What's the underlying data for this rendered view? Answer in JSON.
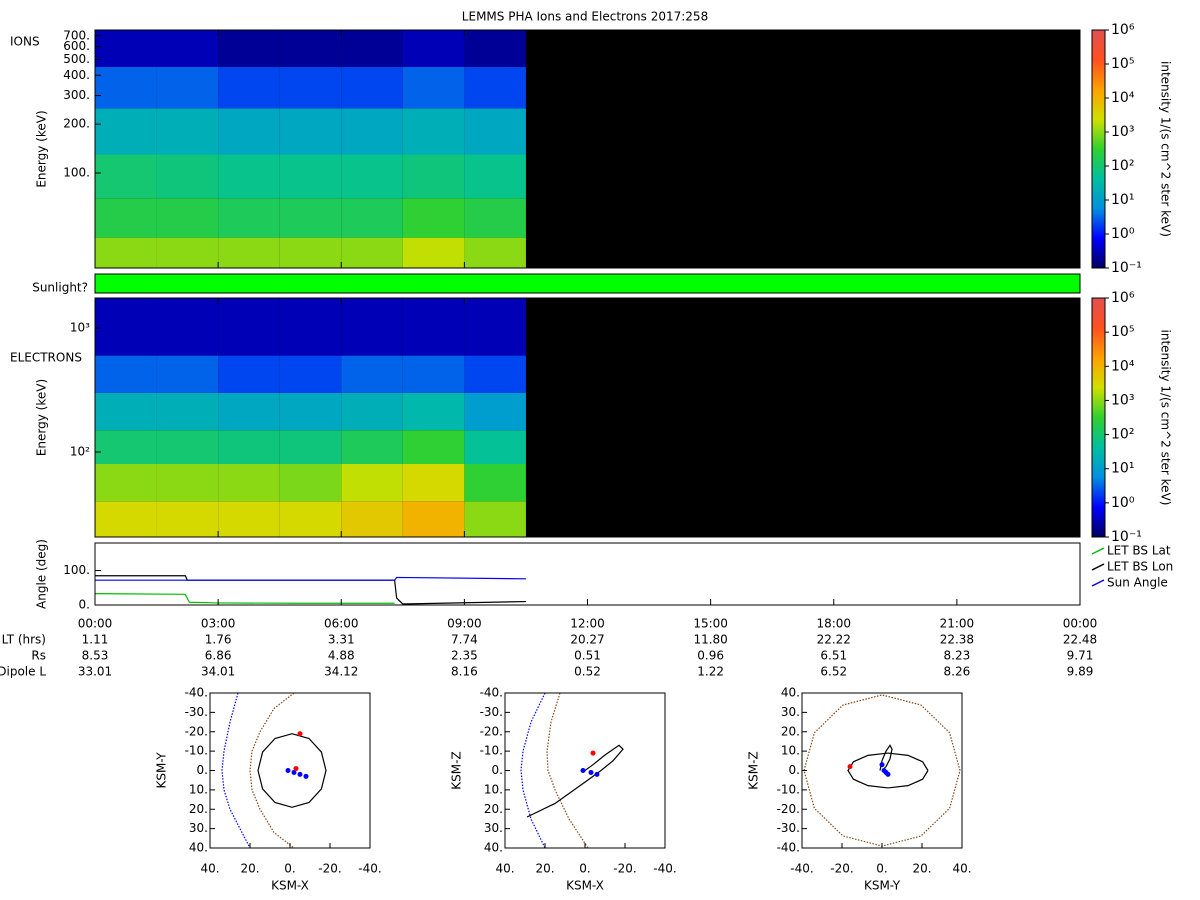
{
  "chart_data": [
    {
      "type": "heatmap",
      "title": "LEMMS PHA Ions and Electrons  2017:258",
      "label": "IONS",
      "ylabel": "Energy (keV)",
      "zlabel": "intensity 1/(s cm^2 ster keV)",
      "ylog": true,
      "ylim": [
        26,
        760
      ],
      "yticks": [
        {
          "value": 100,
          "label": "100."
        },
        {
          "value": 200,
          "label": "200."
        },
        {
          "value": 300,
          "label": "300."
        },
        {
          "value": 400,
          "label": "400."
        },
        {
          "value": 500,
          "label": "500."
        },
        {
          "value": 600,
          "label": "600."
        },
        {
          "value": 700,
          "label": "700."
        }
      ],
      "tbins": [
        0,
        1.5,
        3,
        4.5,
        6,
        7.5,
        9,
        10.5
      ],
      "ebins": [
        26,
        40,
        70,
        130,
        250,
        450,
        760
      ],
      "z": [
        [
          1000,
          1000,
          1000,
          1000,
          1000,
          2000,
          1000
        ],
        [
          200,
          200,
          150,
          150,
          150,
          300,
          200
        ],
        [
          100,
          80,
          60,
          60,
          60,
          80,
          60
        ],
        [
          20,
          20,
          15,
          15,
          15,
          20,
          15
        ],
        [
          3,
          3,
          2,
          2,
          2,
          3,
          2
        ],
        [
          0.3,
          0.3,
          0.2,
          0.2,
          0.2,
          0.3,
          0.2
        ]
      ],
      "zlim": [
        0.1,
        1000000
      ],
      "zticks": [
        {
          "value": 0.1,
          "label": "10⁻¹"
        },
        {
          "value": 1,
          "label": "10⁰"
        },
        {
          "value": 10,
          "label": "10¹"
        },
        {
          "value": 100,
          "label": "10²"
        },
        {
          "value": 1000,
          "label": "10³"
        },
        {
          "value": 10000,
          "label": "10⁴"
        },
        {
          "value": 100000,
          "label": "10⁵"
        },
        {
          "value": 1000000,
          "label": "10⁶"
        }
      ],
      "colormap": [
        "#000060",
        "#0000ff",
        "#0090e0",
        "#00c0a0",
        "#30d030",
        "#d0e000",
        "#ffa000",
        "#ff5020",
        "#e05050"
      ]
    },
    {
      "type": "band",
      "label": "Sunlight?",
      "intervals": [
        [
          0,
          24
        ]
      ],
      "color": "#00ff00"
    },
    {
      "type": "heatmap",
      "label": "ELECTRONS",
      "ylabel": "Energy (keV)",
      "zlabel": "intensity 1/(s cm^2 ster keV)",
      "ylog": true,
      "ylim": [
        20.6,
        1750
      ],
      "yticks": [
        {
          "value": 100,
          "label": "10²"
        },
        {
          "value": 1000,
          "label": "10³"
        }
      ],
      "tbins": [
        0,
        1.5,
        3,
        4.5,
        6,
        7.5,
        9,
        10.5
      ],
      "ebins": [
        20.6,
        40,
        80,
        150,
        300,
        600,
        1750
      ],
      "z": [
        [
          3000,
          3000,
          3000,
          3000,
          5000,
          10000,
          1000
        ],
        [
          1000,
          1000,
          1000,
          800,
          2000,
          3000,
          300
        ],
        [
          100,
          100,
          80,
          80,
          150,
          300,
          50
        ],
        [
          20,
          20,
          15,
          15,
          20,
          30,
          10
        ],
        [
          3,
          3,
          2,
          2,
          3,
          3,
          2
        ],
        [
          0.3,
          0.3,
          0.3,
          0.3,
          0.3,
          0.3,
          0.3
        ]
      ],
      "zlim": [
        0.1,
        1000000
      ],
      "zticks": [
        {
          "value": 0.1,
          "label": "10⁻¹"
        },
        {
          "value": 1,
          "label": "10⁰"
        },
        {
          "value": 10,
          "label": "10¹"
        },
        {
          "value": 100,
          "label": "10²"
        },
        {
          "value": 1000,
          "label": "10³"
        },
        {
          "value": 10000,
          "label": "10⁴"
        },
        {
          "value": 100000,
          "label": "10⁵"
        },
        {
          "value": 1000000,
          "label": "10⁶"
        }
      ],
      "colormap": [
        "#000060",
        "#0000ff",
        "#0090e0",
        "#00c0a0",
        "#30d030",
        "#d0e000",
        "#ffa000",
        "#ff5020",
        "#e05050"
      ]
    },
    {
      "type": "line",
      "ylabel": "Angle (deg)",
      "xlim": [
        0,
        24
      ],
      "ylim": [
        0,
        180
      ],
      "yticks": [
        {
          "value": 0,
          "label": "0."
        },
        {
          "value": 100,
          "label": "100."
        }
      ],
      "xticks": [
        {
          "value": 0,
          "label": "00:00"
        },
        {
          "value": 3,
          "label": "03:00"
        },
        {
          "value": 6,
          "label": "06:00"
        },
        {
          "value": 9,
          "label": "09:00"
        },
        {
          "value": 12,
          "label": "12:00"
        },
        {
          "value": 15,
          "label": "15:00"
        },
        {
          "value": 18,
          "label": "18:00"
        },
        {
          "value": 21,
          "label": "21:00"
        },
        {
          "value": 24,
          "label": "00:00"
        }
      ],
      "series": [
        {
          "name": "LET BS Lat",
          "color": "#00c000",
          "x": [
            0,
            2.2,
            2.3,
            3,
            5,
            7.3
          ],
          "values": [
            33,
            31,
            8,
            6,
            5,
            5
          ]
        },
        {
          "name": "LET BS Lon",
          "color": "#000000",
          "x": [
            0,
            2.2,
            2.25,
            7.3,
            7.35,
            7.5,
            10.5
          ],
          "values": [
            85,
            85,
            72,
            72,
            20,
            3,
            10
          ]
        },
        {
          "name": "Sun Angle",
          "color": "#0000ff",
          "x": [
            0,
            7.3,
            7.35,
            10.5
          ],
          "values": [
            72,
            72,
            80,
            76
          ]
        }
      ],
      "rows": [
        {
          "label": "LT (hrs)",
          "values": [
            "1.11",
            "1.76",
            "3.31",
            "7.74",
            "20.27",
            "11.80",
            "22.22",
            "22.38",
            "22.48"
          ]
        },
        {
          "label": "Rs",
          "values": [
            "8.53",
            "6.86",
            "4.88",
            "2.35",
            "0.51",
            "0.96",
            "6.51",
            "8.23",
            "9.71"
          ]
        },
        {
          "label": "Dipole L",
          "values": [
            "33.01",
            "34.01",
            "34.12",
            "8.16",
            "0.52",
            "1.22",
            "6.52",
            "8.26",
            "9.89"
          ]
        }
      ]
    },
    {
      "type": "orbit",
      "xlabel": "KSM-X",
      "ylabel": "KSM-Y",
      "xlim": [
        40,
        -40
      ],
      "ylim": [
        40,
        -40
      ],
      "xticks": [
        {
          "value": 40,
          "label": "40."
        },
        {
          "value": 20,
          "label": "20."
        },
        {
          "value": 0,
          "label": "0."
        },
        {
          "value": -20,
          "label": "-20."
        },
        {
          "value": -40,
          "label": "-40."
        }
      ],
      "yticks": [
        {
          "value": -40,
          "label": "-40."
        },
        {
          "value": -30,
          "label": "-30."
        },
        {
          "value": -20,
          "label": "-20."
        },
        {
          "value": -10,
          "label": "-10."
        },
        {
          "value": 0,
          "label": "0."
        },
        {
          "value": 10,
          "label": "10."
        },
        {
          "value": 20,
          "label": "20."
        },
        {
          "value": 30,
          "label": "30."
        },
        {
          "value": 40,
          "label": "40."
        }
      ],
      "series": [
        {
          "color": "#8b4513",
          "dotted": true,
          "x": [
            -2,
            8,
            15,
            19,
            20,
            19,
            15,
            8,
            -2
          ],
          "values": [
            -40,
            -32,
            -20,
            -10,
            0,
            10,
            20,
            32,
            40
          ]
        },
        {
          "color": "#0000ff",
          "dotted": true,
          "x": [
            26,
            30,
            33,
            34,
            33,
            30,
            25,
            20
          ],
          "values": [
            -40,
            -25,
            -10,
            0,
            10,
            20,
            30,
            40
          ]
        },
        {
          "color": "#000000",
          "x": [
            16,
            13.7,
            7.5,
            -1,
            -9.5,
            -15.7,
            -18,
            -15.7,
            -9.5,
            -1,
            7.5,
            13.7,
            16
          ],
          "values": [
            0,
            9.5,
            16.5,
            19,
            16.5,
            9.5,
            0,
            -9.5,
            -16.5,
            -19,
            -16.5,
            -9.5,
            0
          ]
        },
        {
          "color": "#0000ff",
          "marker": true,
          "x": [
            1,
            -2,
            -5,
            -8
          ],
          "values": [
            0,
            1,
            2,
            3
          ]
        },
        {
          "color": "#ff0000",
          "marker": true,
          "x": [
            -5,
            -3
          ],
          "values": [
            -19,
            -1
          ]
        }
      ]
    },
    {
      "type": "orbit",
      "xlabel": "KSM-X",
      "ylabel": "KSM-Z",
      "xlim": [
        40,
        -40
      ],
      "ylim": [
        40,
        -40
      ],
      "xticks": [
        {
          "value": 40,
          "label": "40."
        },
        {
          "value": 20,
          "label": "20."
        },
        {
          "value": 0,
          "label": "0."
        },
        {
          "value": -20,
          "label": "-20."
        },
        {
          "value": -40,
          "label": "-40."
        }
      ],
      "yticks": [
        {
          "value": -40,
          "label": "-40."
        },
        {
          "value": -30,
          "label": "-30."
        },
        {
          "value": -20,
          "label": "-20."
        },
        {
          "value": -10,
          "label": "-10."
        },
        {
          "value": 0,
          "label": "0."
        },
        {
          "value": 10,
          "label": "10."
        },
        {
          "value": 20,
          "label": "20."
        },
        {
          "value": 30,
          "label": "30."
        },
        {
          "value": 40,
          "label": "40."
        }
      ],
      "series": [
        {
          "color": "#8b4513",
          "dotted": true,
          "x": [
            12.5,
            17,
            19,
            18.5,
            15,
            8,
            -1.5
          ],
          "values": [
            -40,
            -25,
            -10,
            0,
            10,
            25,
            40
          ]
        },
        {
          "color": "#0000ff",
          "dotted": true,
          "x": [
            20,
            27,
            31,
            32,
            31,
            27,
            20
          ],
          "values": [
            -40,
            -25,
            -10,
            0,
            10,
            25,
            40
          ]
        },
        {
          "color": "#000000",
          "x": [
            29,
            15,
            0,
            -8,
            -14,
            -19,
            -17,
            -10,
            -4,
            0
          ],
          "values": [
            24,
            17,
            6,
            0,
            -5,
            -11,
            -13,
            -8,
            -3,
            0
          ]
        },
        {
          "color": "#0000ff",
          "marker": true,
          "x": [
            1,
            -3,
            -6
          ],
          "values": [
            0,
            1,
            2
          ]
        },
        {
          "color": "#ff0000",
          "marker": true,
          "x": [
            -4
          ],
          "values": [
            -9
          ]
        }
      ]
    },
    {
      "type": "orbit",
      "xlabel": "KSM-Y",
      "ylabel": "KSM-Z",
      "xlim": [
        -40,
        40
      ],
      "ylim": [
        -40,
        40
      ],
      "xticks": [
        {
          "value": -40,
          "label": "-40."
        },
        {
          "value": -20,
          "label": "-20."
        },
        {
          "value": 0,
          "label": "0."
        },
        {
          "value": 20,
          "label": "20."
        },
        {
          "value": 40,
          "label": "40."
        }
      ],
      "yticks": [
        {
          "value": 40,
          "label": "40."
        },
        {
          "value": 30,
          "label": "30."
        },
        {
          "value": 20,
          "label": "20."
        },
        {
          "value": 10,
          "label": "10."
        },
        {
          "value": 0,
          "label": "0."
        },
        {
          "value": -10,
          "label": "-10."
        },
        {
          "value": -20,
          "label": "-20."
        },
        {
          "value": -30,
          "label": "-30."
        },
        {
          "value": -40,
          "label": "-40."
        }
      ],
      "series": [
        {
          "color": "#8b4513",
          "dotted": true,
          "x": [
            39,
            33.8,
            19.5,
            0,
            -19.5,
            -33.8,
            -39,
            -33.8,
            -19.5,
            0,
            19.5,
            33.8,
            39
          ],
          "values": [
            0,
            19.5,
            33.8,
            39,
            33.8,
            19.5,
            0,
            -19.5,
            -33.8,
            -39,
            -33.8,
            -19.5,
            0
          ]
        },
        {
          "color": "#000000",
          "x": [
            23,
            20.3,
            13,
            3,
            -7,
            -14.3,
            -17,
            -14.3,
            -7,
            3,
            13,
            20.3,
            23
          ],
          "values": [
            0,
            4.5,
            7.8,
            9,
            7.8,
            4.5,
            0,
            -4.5,
            -7.8,
            -9,
            -7.8,
            -4.5,
            0
          ]
        },
        {
          "color": "#000000",
          "x": [
            -1,
            0,
            2,
            4,
            5,
            4,
            2,
            0
          ],
          "values": [
            0,
            5,
            10,
            13,
            11,
            6,
            2,
            0
          ]
        },
        {
          "color": "#0000ff",
          "marker": true,
          "x": [
            0,
            1,
            2,
            3
          ],
          "values": [
            3,
            0,
            -1,
            -2
          ]
        },
        {
          "color": "#ff0000",
          "marker": true,
          "x": [
            -16
          ],
          "values": [
            2
          ]
        }
      ]
    }
  ]
}
